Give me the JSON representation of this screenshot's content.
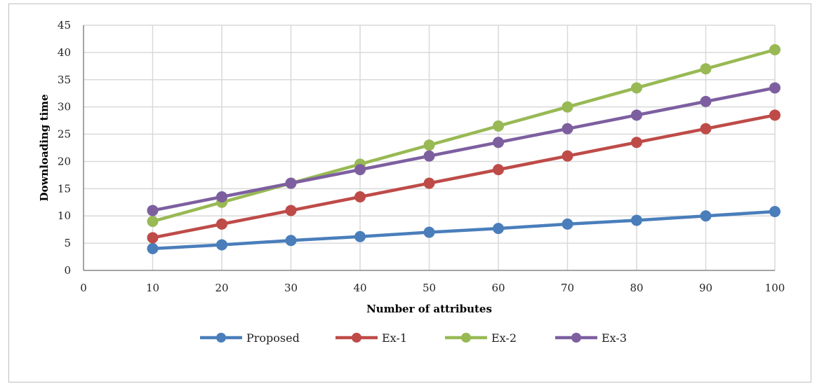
{
  "chart_data": {
    "type": "line",
    "title": "",
    "xlabel": "Number of attributes",
    "ylabel": "Downloading time",
    "xlim": [
      0,
      100
    ],
    "ylim": [
      0,
      45
    ],
    "x_ticks": [
      "0",
      "10",
      "20",
      "30",
      "40",
      "50",
      "60",
      "70",
      "80",
      "90",
      "100"
    ],
    "y_ticks": [
      "0",
      "5",
      "10",
      "15",
      "20",
      "25",
      "30",
      "35",
      "40",
      "45"
    ],
    "grid": true,
    "legend_position": "bottom",
    "x": [
      10,
      20,
      30,
      40,
      50,
      60,
      70,
      80,
      90,
      100
    ],
    "series": [
      {
        "name": "Proposed",
        "color": "#4a7ebb",
        "values": [
          4,
          4.7,
          5.5,
          6.2,
          7,
          7.7,
          8.5,
          9.2,
          10,
          10.8
        ]
      },
      {
        "name": "Ex-1",
        "color": "#be4b48",
        "values": [
          6,
          8.5,
          11,
          13.5,
          16,
          18.5,
          21,
          23.5,
          26,
          28.5
        ]
      },
      {
        "name": "Ex-2",
        "color": "#98b954",
        "values": [
          9,
          12.5,
          16,
          19.5,
          23,
          26.5,
          30,
          33.5,
          37,
          40.5
        ]
      },
      {
        "name": "Ex-3",
        "color": "#7d5fa0",
        "values": [
          11,
          13.5,
          16,
          18.5,
          21,
          23.5,
          26,
          28.5,
          31,
          33.5
        ]
      }
    ]
  }
}
